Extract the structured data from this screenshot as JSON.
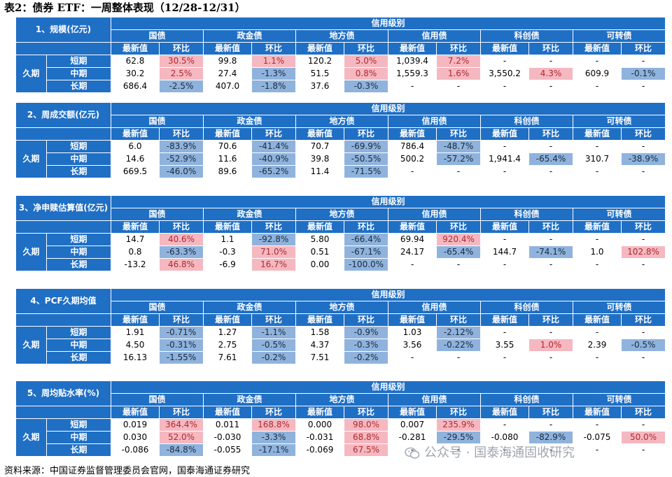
{
  "page_title": "表2：债券 ETF：一周整体表现（12/28-12/31）",
  "source_note": "资料来源：中国证券监督管理委员会官网，国泰海通证券研究",
  "watermark": "公众号 · 国泰海通固收研究",
  "credit_group_label": "信用级别",
  "duration_label": "久期",
  "categories": [
    "国债",
    "政金债",
    "地方债",
    "信用债",
    "科创债",
    "可转债"
  ],
  "sub_headers": [
    "最新值",
    "环比"
  ],
  "row_labels": [
    "短期",
    "中期",
    "长期"
  ],
  "tables": [
    {
      "title": "1、规模(亿元)",
      "rows": [
        [
          [
            "62.8",
            "n"
          ],
          [
            "30.5%",
            "u"
          ],
          [
            "99.8",
            "n"
          ],
          [
            "1.1%",
            "u"
          ],
          [
            "120.2",
            "n"
          ],
          [
            "5.0%",
            "u"
          ],
          [
            "1,039.4",
            "n"
          ],
          [
            "7.2%",
            "u"
          ],
          [
            "-",
            "n"
          ],
          [
            "-",
            "n"
          ],
          [
            "-",
            "n"
          ],
          [
            "-",
            "n"
          ]
        ],
        [
          [
            "30.2",
            "n"
          ],
          [
            "2.5%",
            "u"
          ],
          [
            "27.4",
            "n"
          ],
          [
            "-1.3%",
            "d"
          ],
          [
            "51.5",
            "n"
          ],
          [
            "0.8%",
            "u"
          ],
          [
            "1,559.3",
            "n"
          ],
          [
            "1.6%",
            "u"
          ],
          [
            "3,550.2",
            "n"
          ],
          [
            "4.3%",
            "u"
          ],
          [
            "609.9",
            "n"
          ],
          [
            "-0.1%",
            "d"
          ]
        ],
        [
          [
            "686.4",
            "n"
          ],
          [
            "-2.5%",
            "d"
          ],
          [
            "407.0",
            "n"
          ],
          [
            "-1.8%",
            "d"
          ],
          [
            "37.6",
            "n"
          ],
          [
            "-0.3%",
            "d"
          ],
          [
            "-",
            "n"
          ],
          [
            "-",
            "n"
          ],
          [
            "-",
            "n"
          ],
          [
            "-",
            "n"
          ],
          [
            "-",
            "n"
          ],
          [
            "-",
            "n"
          ]
        ]
      ]
    },
    {
      "title": "2、周成交额(亿元)",
      "rows": [
        [
          [
            "6.0",
            "n"
          ],
          [
            "-83.9%",
            "d"
          ],
          [
            "70.6",
            "n"
          ],
          [
            "-41.4%",
            "d"
          ],
          [
            "70.7",
            "n"
          ],
          [
            "-69.9%",
            "d"
          ],
          [
            "786.4",
            "n"
          ],
          [
            "-48.7%",
            "d"
          ],
          [
            "-",
            "n"
          ],
          [
            "-",
            "n"
          ],
          [
            "-",
            "n"
          ],
          [
            "-",
            "n"
          ]
        ],
        [
          [
            "14.6",
            "n"
          ],
          [
            "-52.9%",
            "d"
          ],
          [
            "11.6",
            "n"
          ],
          [
            "-40.9%",
            "d"
          ],
          [
            "39.8",
            "n"
          ],
          [
            "-50.5%",
            "d"
          ],
          [
            "500.2",
            "n"
          ],
          [
            "-57.2%",
            "d"
          ],
          [
            "1,941.4",
            "n"
          ],
          [
            "-65.4%",
            "d"
          ],
          [
            "310.7",
            "n"
          ],
          [
            "-38.9%",
            "d"
          ]
        ],
        [
          [
            "669.5",
            "n"
          ],
          [
            "-46.0%",
            "d"
          ],
          [
            "89.6",
            "n"
          ],
          [
            "-65.2%",
            "d"
          ],
          [
            "11.4",
            "n"
          ],
          [
            "-71.5%",
            "d"
          ],
          [
            "-",
            "n"
          ],
          [
            "-",
            "n"
          ],
          [
            "-",
            "n"
          ],
          [
            "-",
            "n"
          ],
          [
            "-",
            "n"
          ],
          [
            "-",
            "n"
          ]
        ]
      ]
    },
    {
      "title": "3、净申赎估算值(亿元)",
      "rows": [
        [
          [
            "14.7",
            "n"
          ],
          [
            "40.6%",
            "u"
          ],
          [
            "1.1",
            "n"
          ],
          [
            "-92.8%",
            "d"
          ],
          [
            "5.80",
            "n"
          ],
          [
            "-66.4%",
            "d"
          ],
          [
            "69.94",
            "n"
          ],
          [
            "920.4%",
            "u"
          ],
          [
            "-",
            "n"
          ],
          [
            "-",
            "n"
          ],
          [
            "-",
            "n"
          ],
          [
            "-",
            "n"
          ]
        ],
        [
          [
            "0.8",
            "n"
          ],
          [
            "-63.3%",
            "d"
          ],
          [
            "-0.3",
            "n"
          ],
          [
            "71.0%",
            "u"
          ],
          [
            "0.51",
            "n"
          ],
          [
            "-67.1%",
            "d"
          ],
          [
            "24.17",
            "n"
          ],
          [
            "-65.4%",
            "d"
          ],
          [
            "144.7",
            "n"
          ],
          [
            "-74.1%",
            "d"
          ],
          [
            "1.0",
            "n"
          ],
          [
            "102.8%",
            "u"
          ]
        ],
        [
          [
            "-13.2",
            "n"
          ],
          [
            "46.8%",
            "u"
          ],
          [
            "-6.9",
            "n"
          ],
          [
            "16.7%",
            "u"
          ],
          [
            "0.00",
            "n"
          ],
          [
            "-100.0%",
            "d"
          ],
          [
            "-",
            "n"
          ],
          [
            "-",
            "n"
          ],
          [
            "-",
            "n"
          ],
          [
            "-",
            "n"
          ],
          [
            "-",
            "n"
          ],
          [
            "-",
            "n"
          ]
        ]
      ]
    },
    {
      "title": "4、PCF久期均值",
      "rows": [
        [
          [
            "1.91",
            "n"
          ],
          [
            "-0.71%",
            "d"
          ],
          [
            "1.27",
            "n"
          ],
          [
            "-1.1%",
            "d"
          ],
          [
            "1.58",
            "n"
          ],
          [
            "-0.9%",
            "d"
          ],
          [
            "1.03",
            "n"
          ],
          [
            "-2.12%",
            "d"
          ],
          [
            "-",
            "n"
          ],
          [
            "-",
            "n"
          ],
          [
            "-",
            "n"
          ],
          [
            "-",
            "n"
          ]
        ],
        [
          [
            "4.50",
            "n"
          ],
          [
            "-0.31%",
            "d"
          ],
          [
            "2.75",
            "n"
          ],
          [
            "-0.5%",
            "d"
          ],
          [
            "4.37",
            "n"
          ],
          [
            "-0.3%",
            "d"
          ],
          [
            "3.56",
            "n"
          ],
          [
            "-0.22%",
            "d"
          ],
          [
            "3.55",
            "n"
          ],
          [
            "1.0%",
            "u"
          ],
          [
            "2.39",
            "n"
          ],
          [
            "-0.5%",
            "d"
          ]
        ],
        [
          [
            "16.13",
            "n"
          ],
          [
            "-1.55%",
            "d"
          ],
          [
            "7.61",
            "n"
          ],
          [
            "-0.2%",
            "d"
          ],
          [
            "7.51",
            "n"
          ],
          [
            "-0.2%",
            "d"
          ],
          [
            "-",
            "n"
          ],
          [
            "-",
            "n"
          ],
          [
            "-",
            "n"
          ],
          [
            "-",
            "n"
          ],
          [
            "-",
            "n"
          ],
          [
            "-",
            "n"
          ]
        ]
      ]
    },
    {
      "title": "5、周均贴水率(%)",
      "rows": [
        [
          [
            "0.019",
            "n"
          ],
          [
            "364.4%",
            "u"
          ],
          [
            "0.011",
            "n"
          ],
          [
            "168.8%",
            "u"
          ],
          [
            "0.000",
            "n"
          ],
          [
            "98.0%",
            "u"
          ],
          [
            "0.007",
            "n"
          ],
          [
            "235.9%",
            "u"
          ],
          [
            "-",
            "n"
          ],
          [
            "-",
            "n"
          ],
          [
            "-",
            "n"
          ],
          [
            "-",
            "n"
          ]
        ],
        [
          [
            "0.030",
            "n"
          ],
          [
            "52.0%",
            "u"
          ],
          [
            "-0.030",
            "n"
          ],
          [
            "-3.3%",
            "d"
          ],
          [
            "-0.031",
            "n"
          ],
          [
            "68.8%",
            "u"
          ],
          [
            "-0.281",
            "n"
          ],
          [
            "-29.5%",
            "d"
          ],
          [
            "-0.080",
            "n"
          ],
          [
            "-82.9%",
            "d"
          ],
          [
            "-0.075",
            "n"
          ],
          [
            "50.0%",
            "u"
          ]
        ],
        [
          [
            "-0.086",
            "n"
          ],
          [
            "-84.8%",
            "d"
          ],
          [
            "-0.055",
            "n"
          ],
          [
            "-17.1%",
            "d"
          ],
          [
            "-0.069",
            "n"
          ],
          [
            "67.5%",
            "u"
          ],
          [
            "-",
            "n"
          ],
          [
            "-",
            "n"
          ],
          [
            "-",
            "n"
          ],
          [
            "-",
            "n"
          ],
          [
            "-",
            "n"
          ],
          [
            "-",
            "n"
          ]
        ]
      ]
    }
  ]
}
